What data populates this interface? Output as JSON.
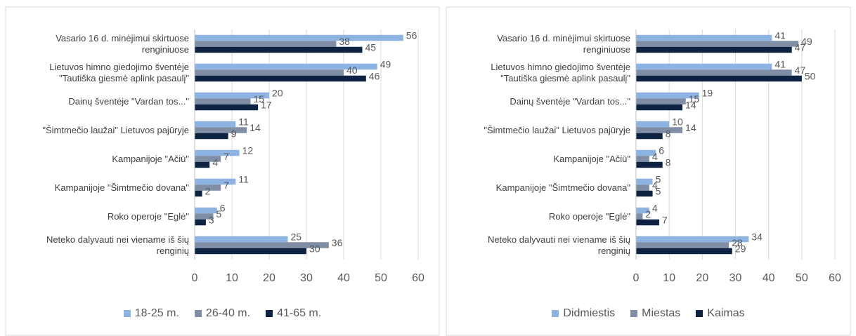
{
  "chart_data": [
    {
      "type": "bar",
      "orientation": "horizontal",
      "categories": [
        "Vasario 16 d. minėjimui skirtuose renginiuose",
        "Lietuvos himno giedojimo šventėje \"Tautiška giesmė aplink pasaulį\"",
        "Dainų šventėje \"Vardan tos...\"",
        "\"Šimtmečio laužai\" Lietuvos pajūryje",
        "Kampanijoje \"Ačiū\"",
        "Kampanijoje \"Šimtmečio dovana\"",
        "Roko operoje \"Eglė\"",
        "Neteko dalyvauti nei viename iš šių renginių"
      ],
      "series": [
        {
          "name": "18-25 m.",
          "color": "#8db3e2",
          "values": [
            56,
            49,
            20,
            11,
            12,
            11,
            6,
            25
          ]
        },
        {
          "name": "26-40 m.",
          "color": "#7f8ea4",
          "values": [
            38,
            40,
            15,
            14,
            7,
            7,
            5,
            36
          ]
        },
        {
          "name": "41-65 m.",
          "color": "#0e2341",
          "values": [
            45,
            46,
            17,
            9,
            4,
            2,
            3,
            30
          ]
        }
      ],
      "xlim": [
        0,
        60
      ],
      "xticks": [
        0,
        10,
        20,
        30,
        40,
        50,
        60
      ],
      "grid": true,
      "legend": "bottom"
    },
    {
      "type": "bar",
      "orientation": "horizontal",
      "categories": [
        "Vasario 16 d. minėjimui skirtuose renginiuose",
        "Lietuvos himno giedojimo šventėje \"Tautiška giesmė aplink pasaulį\"",
        "Dainų šventėje \"Vardan tos...\"",
        "\"Šimtmečio laužai\" Lietuvos pajūryje",
        "Kampanijoje \"Ačiū\"",
        "Kampanijoje \"Šimtmečio dovana\"",
        "Roko operoje \"Eglė\"",
        "Neteko dalyvauti nei viename iš šių renginių"
      ],
      "series": [
        {
          "name": "Didmiestis",
          "color": "#8db3e2",
          "values": [
            41,
            41,
            19,
            10,
            6,
            5,
            4,
            34
          ]
        },
        {
          "name": "Miestas",
          "color": "#7f8ea4",
          "values": [
            49,
            47,
            15,
            14,
            4,
            4,
            2,
            28
          ]
        },
        {
          "name": "Kaimas",
          "color": "#0e2341",
          "values": [
            47,
            50,
            14,
            8,
            8,
            5,
            7,
            29
          ]
        }
      ],
      "xlim": [
        0,
        60
      ],
      "xticks": [
        0,
        10,
        20,
        30,
        40,
        50,
        60
      ],
      "grid": true,
      "legend": "bottom"
    }
  ]
}
